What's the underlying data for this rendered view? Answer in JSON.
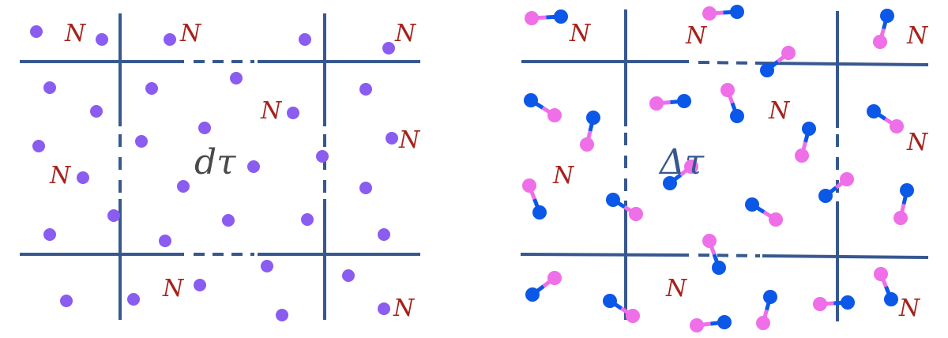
{
  "left_panel": {
    "volume_label": "dτ",
    "particle_label": "N",
    "particle_type": "atom"
  },
  "right_panel": {
    "volume_label": "Δτ",
    "particle_label": "N",
    "particle_type": "diatomic-molecule"
  },
  "colors": {
    "grid_line": "#37588f",
    "atom": "#8a5cf0",
    "molecule_pink": "#ee6fe8",
    "molecule_blue": "#0b57e8",
    "n_label": "#a5221c",
    "d_tau_label": "#4a4a4a",
    "delta_tau_label": "#37588f"
  }
}
